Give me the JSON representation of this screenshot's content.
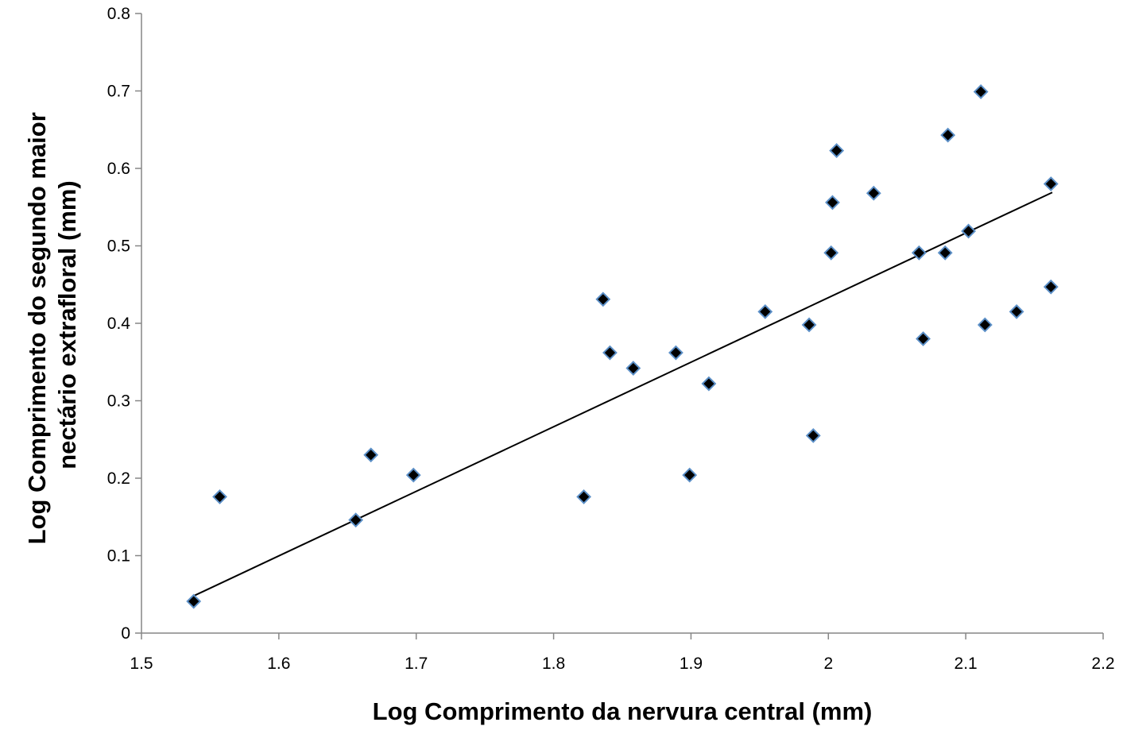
{
  "chart_data": {
    "type": "scatter",
    "title": "",
    "xlabel": "Log Comprimento da nervura central (mm)",
    "ylabel_lines": [
      "Log  Comprimento do segundo maior",
      "nectário extrafloral (mm)"
    ],
    "xlim": [
      1.5,
      2.2
    ],
    "ylim": [
      0,
      0.8
    ],
    "x_ticks": [
      1.5,
      1.6,
      1.7,
      1.8,
      1.9,
      2.0,
      2.1,
      2.2
    ],
    "x_tick_labels": [
      "1.5",
      "1.6",
      "1.7",
      "1.8",
      "1.9",
      "2",
      "2.1",
      "2.2"
    ],
    "y_ticks": [
      0,
      0.1,
      0.2,
      0.3,
      0.4,
      0.5,
      0.6,
      0.7,
      0.8
    ],
    "y_tick_labels": [
      "0",
      "0.1",
      "0.2",
      "0.3",
      "0.4",
      "0.5",
      "0.6",
      "0.7",
      "0.8"
    ],
    "grid": false,
    "legend": "none",
    "marker": {
      "shape": "diamond",
      "fill": "#000000",
      "stroke": "#5b8fc7"
    },
    "trendline": {
      "x": [
        1.538,
        2.163
      ],
      "y": [
        0.048,
        0.569
      ],
      "color": "#000000"
    },
    "series": [
      {
        "x": [
          1.538,
          1.557,
          1.656,
          1.667,
          1.698,
          1.822,
          1.836,
          1.841,
          1.858,
          1.889,
          1.899,
          1.913,
          1.954,
          1.986,
          1.989,
          2.002,
          2.003,
          2.006,
          2.033,
          2.066,
          2.069,
          2.085,
          2.087,
          2.102,
          2.111,
          2.114,
          2.137,
          2.162,
          2.162
        ],
        "y": [
          0.041,
          0.176,
          0.146,
          0.23,
          0.204,
          0.176,
          0.431,
          0.362,
          0.342,
          0.362,
          0.204,
          0.322,
          0.415,
          0.398,
          0.255,
          0.491,
          0.556,
          0.623,
          0.568,
          0.491,
          0.38,
          0.491,
          0.643,
          0.519,
          0.699,
          0.398,
          0.415,
          0.58,
          0.447
        ]
      }
    ]
  }
}
